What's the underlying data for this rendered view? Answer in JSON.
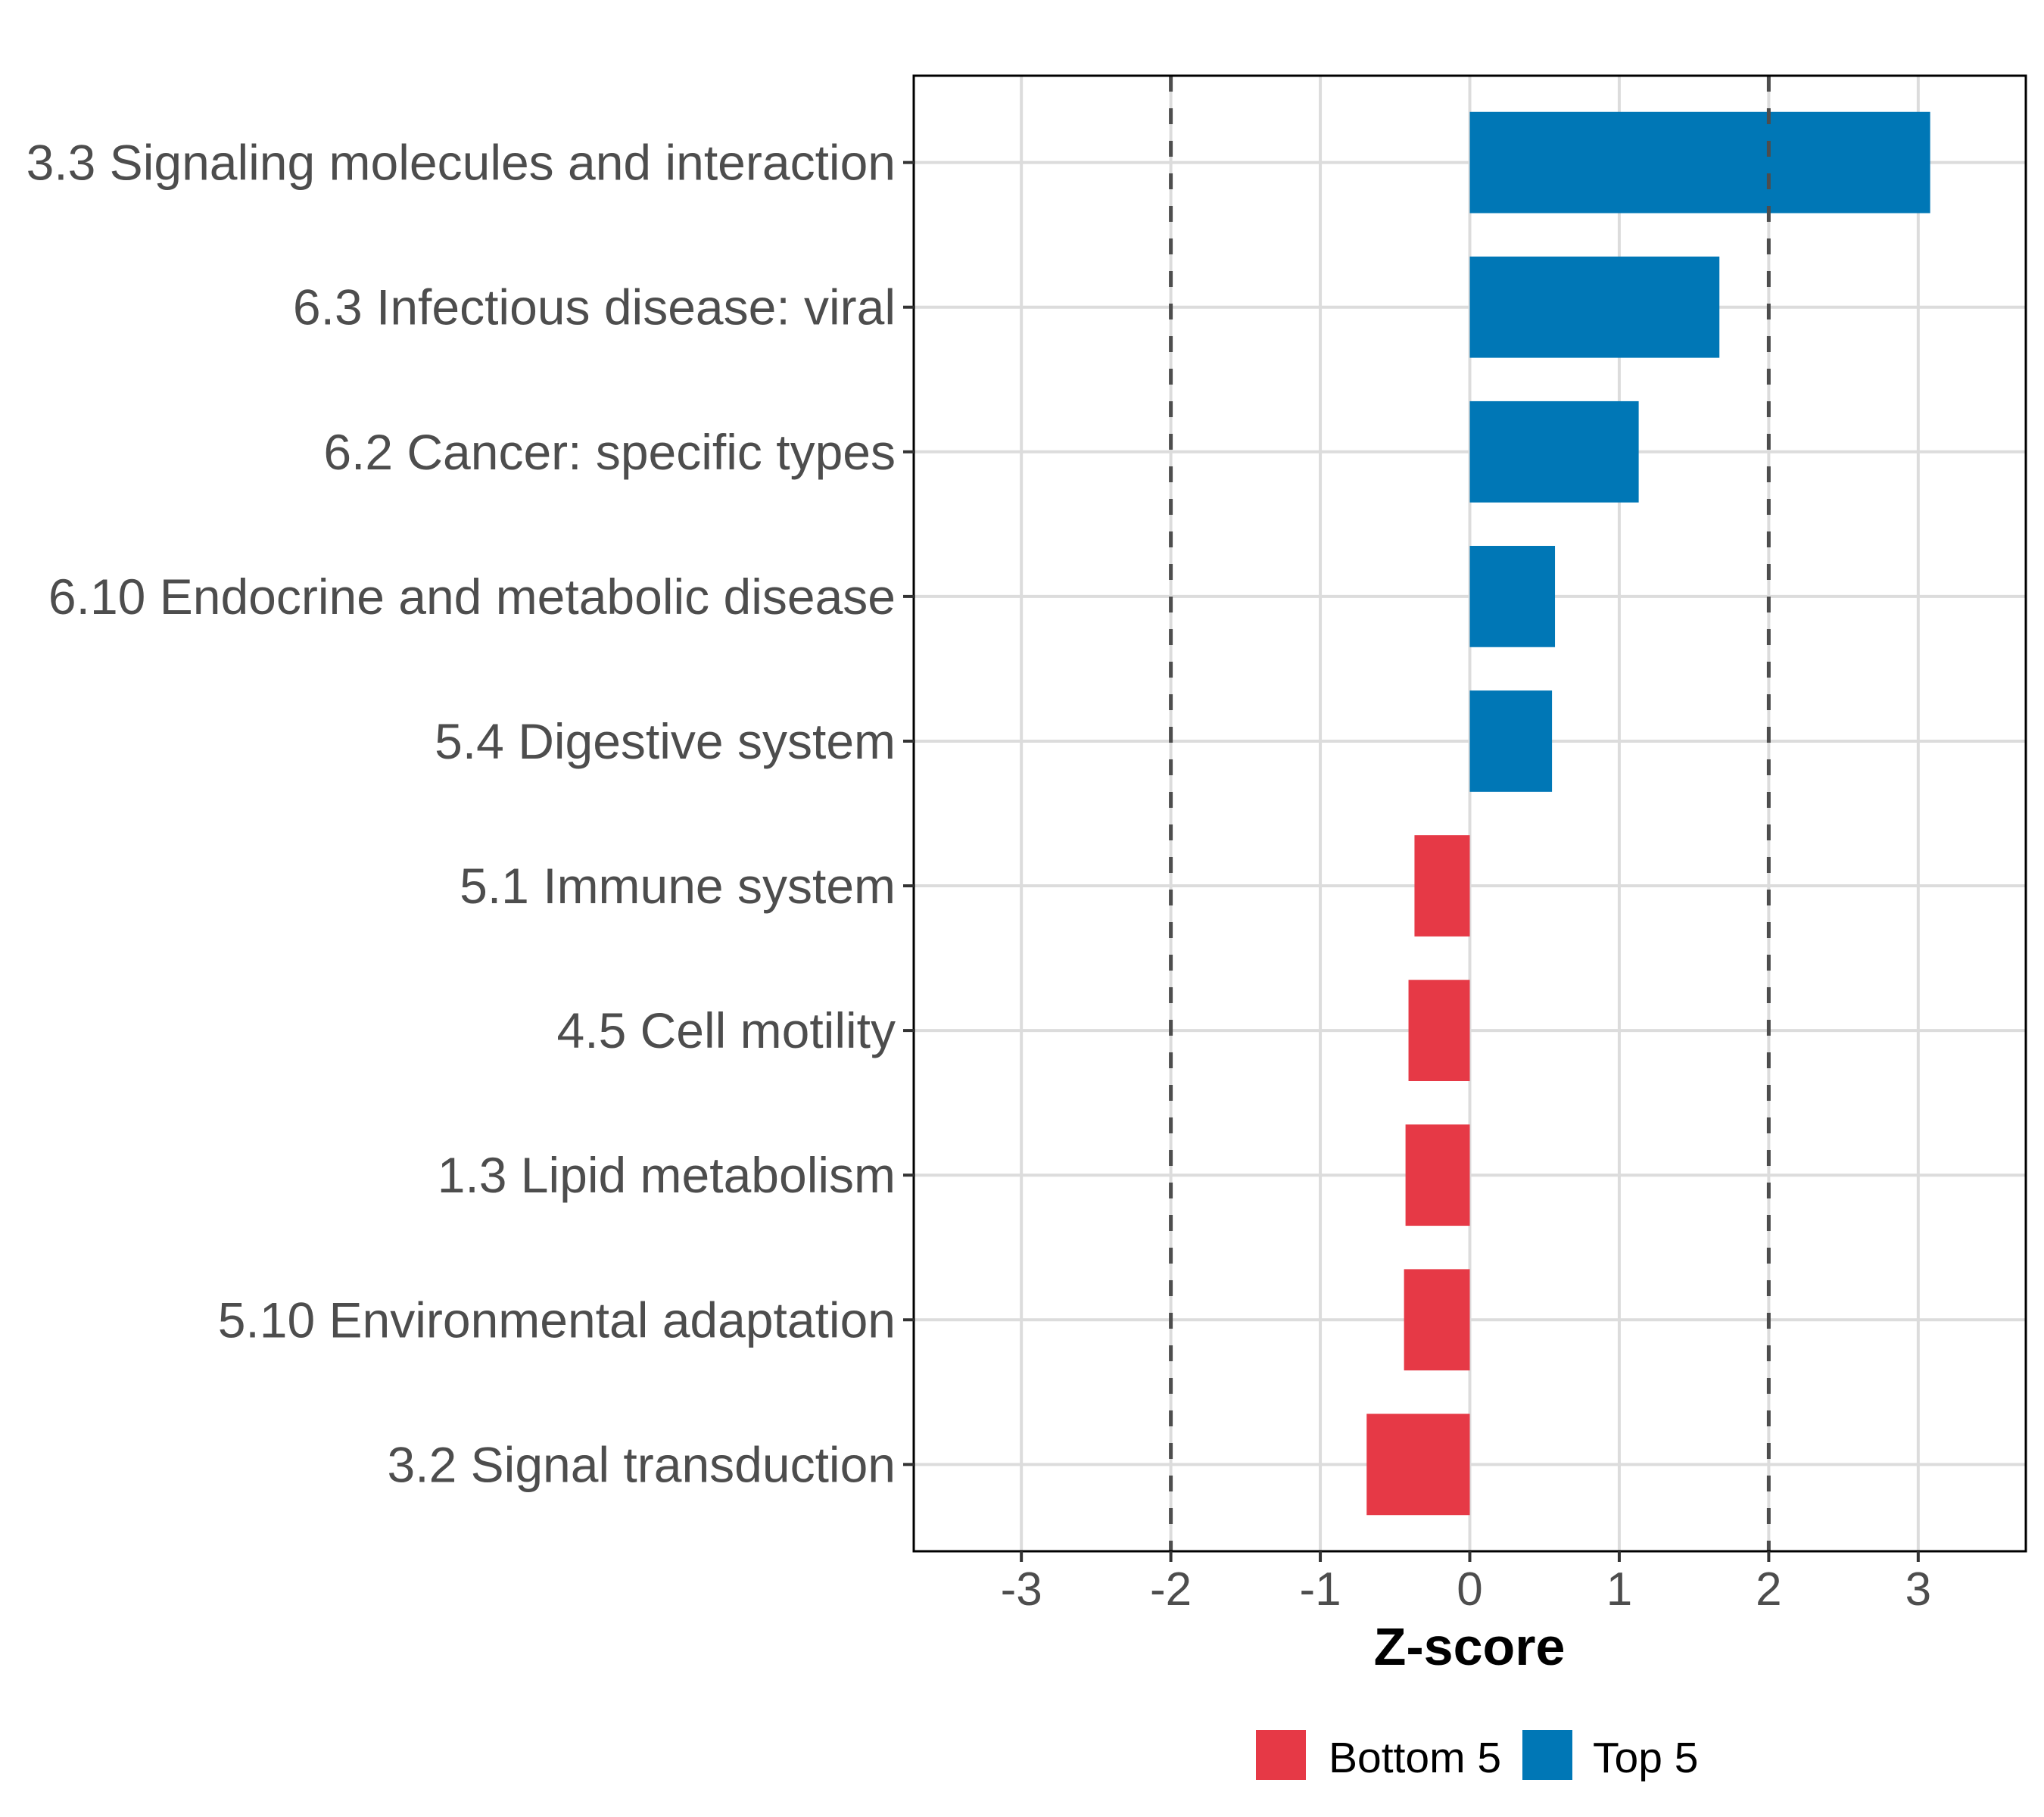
{
  "chart_data": {
    "type": "bar",
    "orientation": "horizontal",
    "title": "",
    "xlabel": "Z-score",
    "ylabel": "",
    "xlim": [
      -3.72,
      3.72
    ],
    "xticks": [
      -3,
      -2,
      -1,
      0,
      1,
      2,
      3
    ],
    "xtick_labels": [
      "-3",
      "-2",
      "-1",
      "0",
      "1",
      "2",
      "3"
    ],
    "grid": true,
    "reference_lines": [
      {
        "x": -2,
        "style": "dashed"
      },
      {
        "x": 2,
        "style": "dashed"
      }
    ],
    "categories": [
      "3.3 Signaling molecules and interaction",
      "6.3 Infectious disease: viral",
      "6.2 Cancer: specific types",
      "6.10 Endocrine and metabolic disease",
      "5.4 Digestive system",
      "5.1 Immune system",
      "4.5 Cell motility",
      "1.3 Lipid metabolism",
      "5.10 Environmental adaptation",
      "3.2 Signal transduction"
    ],
    "values": [
      3.08,
      1.67,
      1.13,
      0.57,
      0.55,
      -0.37,
      -0.41,
      -0.43,
      -0.44,
      -0.69
    ],
    "groups": [
      "Top 5",
      "Top 5",
      "Top 5",
      "Top 5",
      "Top 5",
      "Bottom 5",
      "Bottom 5",
      "Bottom 5",
      "Bottom 5",
      "Bottom 5"
    ],
    "legend": {
      "placement": "bottom",
      "entries": [
        {
          "label": "Bottom 5",
          "color": "#E63946"
        },
        {
          "label": "Top 5",
          "color": "#0077B6"
        }
      ]
    },
    "colors": {
      "Top 5": "#0077B6",
      "Bottom 5": "#E63946"
    }
  }
}
